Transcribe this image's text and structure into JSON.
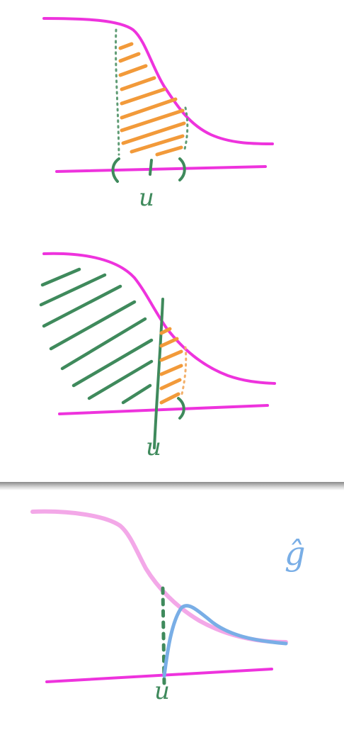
{
  "panels": [
    {
      "label": "u"
    },
    {
      "label": "u"
    },
    {
      "label": "u",
      "estimator_label": "ĝ"
    }
  ],
  "colors": {
    "curve": "#ee33dd",
    "hatch_orange": "#f29a3a",
    "hatch_green": "#3f8a5c",
    "estimator": "#79aee6"
  }
}
